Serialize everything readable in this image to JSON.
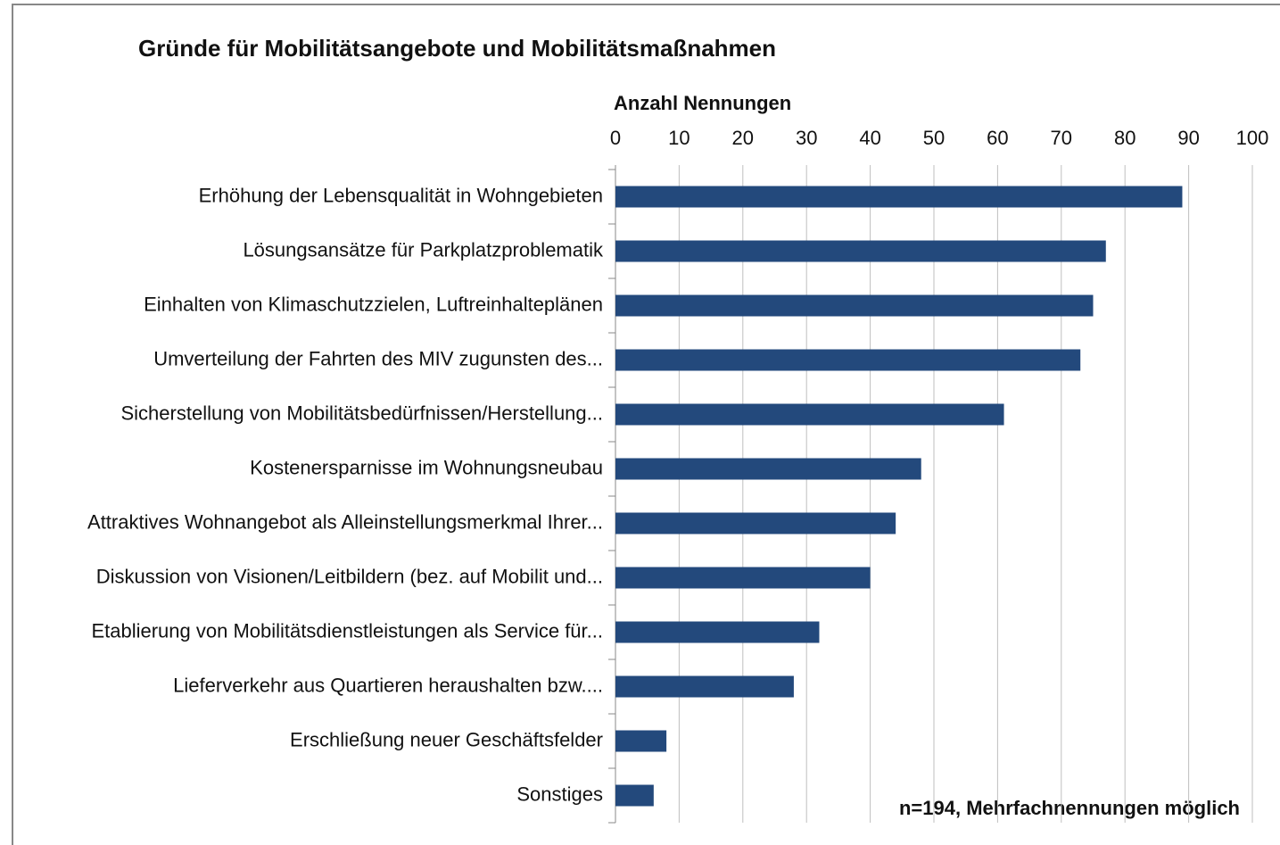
{
  "chart_data": {
    "type": "bar",
    "orientation": "horizontal",
    "title": "Gründe für Mobilitätsangebote und Mobilitätsmaßnahmen",
    "x_label": "Anzahl Nennungen",
    "annotation": "n=194, Mehrfachnennungen möglich",
    "categories": [
      "Erhöhung der Lebensqualität in Wohngebieten",
      "Lösungsansätze für Parkplatzproblematik",
      "Einhalten von Klimaschutzzielen, Luftreinhalteplänen",
      "Umverteilung der Fahrten des MIV zugunsten des...",
      "Sicherstellung von Mobilitätsbedürfnissen/Herstellung...",
      "Kostenersparnisse im Wohnungsneubau",
      "Attraktives Wohnangebot als Alleinstellungsmerkmal Ihrer...",
      "Diskussion von Visionen/Leitbildern (bez. auf Mobilit und...",
      "Etablierung von Mobilitätsdienstleistungen als Service für...",
      "Lieferverkehr aus Quartieren heraushalten bzw....",
      "Erschließung neuer Geschäftsfelder",
      "Sonstiges"
    ],
    "values": [
      89,
      77,
      75,
      73,
      61,
      48,
      44,
      40,
      32,
      28,
      8,
      6
    ],
    "color": "#23497c",
    "xlim": [
      0,
      100
    ],
    "xticks": [
      0,
      10,
      20,
      30,
      40,
      50,
      60,
      70,
      80,
      90,
      100
    ],
    "grid": true
  }
}
